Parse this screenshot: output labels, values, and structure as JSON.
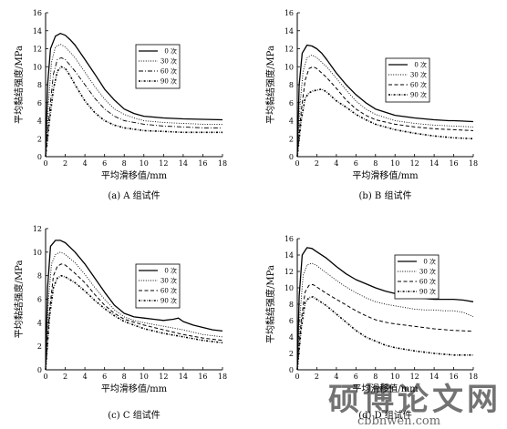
{
  "figure": {
    "watermark": {
      "text": "硕博论文网",
      "url": "cbbnwen.com"
    }
  },
  "chart_data": [
    {
      "type": "line",
      "caption": "(a) A 组试件",
      "xlabel": "平均滑移值/mm",
      "ylabel": "平均黏结强度/MPa",
      "xlim": [
        0,
        18
      ],
      "ylim": [
        0,
        16
      ],
      "xticks": [
        "0",
        "2",
        "4",
        "6",
        "8",
        "10",
        "12",
        "14",
        "16",
        "18"
      ],
      "yticks": [
        "0",
        "2",
        "4",
        "6",
        "8",
        "10",
        "12",
        "14",
        "16"
      ],
      "grid": false,
      "legend_position": "top-right",
      "series": [
        {
          "name": "0 次",
          "style": "solid",
          "x": [
            0,
            0.2,
            0.5,
            1,
            1.5,
            2,
            2.5,
            3,
            4,
            5,
            6,
            7,
            8,
            9,
            10,
            12,
            14,
            16,
            18
          ],
          "y": [
            0,
            8,
            12,
            13.4,
            13.7,
            13.5,
            13,
            12.4,
            10.8,
            9.2,
            7.5,
            6.3,
            5.3,
            4.8,
            4.5,
            4.3,
            4.2,
            4.15,
            4.1
          ]
        },
        {
          "name": "30 次",
          "style": "dotted",
          "x": [
            0,
            0.3,
            0.6,
            1,
            1.5,
            2,
            3,
            4,
            5,
            6,
            7,
            8,
            9,
            10,
            12,
            14,
            16,
            18
          ],
          "y": [
            0,
            6,
            10.5,
            12.2,
            12.5,
            12.2,
            11,
            9.4,
            7.8,
            6.4,
            5.3,
            4.7,
            4.3,
            4,
            3.8,
            3.7,
            3.6,
            3.6
          ]
        },
        {
          "name": "60 次",
          "style": "dashdot",
          "x": [
            0,
            0.4,
            0.8,
            1.2,
            1.6,
            2,
            3,
            4,
            5,
            6,
            7,
            8,
            10,
            12,
            14,
            16,
            18
          ],
          "y": [
            0,
            5,
            9.2,
            10.8,
            11,
            10.8,
            9.5,
            8,
            6.5,
            5.3,
            4.5,
            4,
            3.6,
            3.4,
            3.3,
            3.2,
            3.2
          ]
        },
        {
          "name": "90 次",
          "style": "dotdash",
          "x": [
            0,
            0.4,
            0.8,
            1.2,
            1.6,
            2,
            2.5,
            3,
            4,
            5,
            6,
            7,
            8,
            10,
            12,
            14,
            16,
            18
          ],
          "y": [
            0,
            4,
            7.5,
            9.5,
            10,
            9.8,
            9,
            8,
            6.2,
            4.9,
            4,
            3.5,
            3.2,
            2.9,
            2.8,
            2.7,
            2.7,
            2.7
          ]
        }
      ]
    },
    {
      "type": "line",
      "caption": "(b) B 组试件",
      "xlabel": "平均滑移值/mm",
      "ylabel": "平均黏结强度/MPa",
      "xlim": [
        0,
        18
      ],
      "ylim": [
        0,
        16
      ],
      "xticks": [
        "0",
        "2",
        "4",
        "6",
        "8",
        "10",
        "12",
        "14",
        "16",
        "18"
      ],
      "yticks": [
        "0",
        "2",
        "4",
        "6",
        "8",
        "10",
        "12",
        "14",
        "16"
      ],
      "grid": false,
      "legend_position": "top-right",
      "series": [
        {
          "name": "0 次",
          "style": "solid",
          "x": [
            0,
            0.2,
            0.5,
            1,
            1.5,
            2,
            2.5,
            3,
            4,
            5,
            6,
            7,
            8,
            10,
            12,
            14,
            15.5,
            16,
            18
          ],
          "y": [
            0,
            8,
            11.5,
            12.4,
            12.3,
            12,
            11.5,
            10.8,
            9.3,
            8,
            6.9,
            6,
            5.3,
            4.6,
            4.3,
            4.1,
            4,
            4,
            3.9
          ]
        },
        {
          "name": "30 次",
          "style": "dotted",
          "x": [
            0,
            0.3,
            0.6,
            1,
            1.5,
            2,
            3,
            4,
            5,
            6,
            7,
            8,
            10,
            12,
            14,
            16,
            18
          ],
          "y": [
            0,
            6,
            9.5,
            11,
            11.3,
            11,
            10,
            8.7,
            7.4,
            6.2,
            5.3,
            4.7,
            4,
            3.7,
            3.5,
            3.4,
            3.3
          ]
        },
        {
          "name": "60 次",
          "style": "dashed",
          "x": [
            0,
            0.4,
            0.8,
            1.2,
            1.6,
            2,
            3,
            4,
            5,
            6,
            7,
            8,
            10,
            12,
            14,
            16,
            18
          ],
          "y": [
            0,
            5,
            8.5,
            9.8,
            10,
            9.8,
            8.8,
            7.6,
            6.3,
            5.3,
            4.6,
            4.1,
            3.6,
            3.3,
            3.1,
            3,
            2.9
          ]
        },
        {
          "name": "90 次",
          "style": "dotdash",
          "x": [
            0,
            0.4,
            0.8,
            1.2,
            1.6,
            2,
            2.5,
            3,
            4,
            5,
            6,
            7,
            8,
            10,
            12,
            14,
            16,
            18
          ],
          "y": [
            0,
            4,
            6.5,
            7.1,
            7.3,
            7.4,
            7.5,
            7.2,
            6.2,
            5.5,
            4.7,
            4.1,
            3.6,
            3,
            2.6,
            2.3,
            2.1,
            2
          ]
        }
      ]
    },
    {
      "type": "line",
      "caption": "(c) C 组试件",
      "xlabel": "平均滑移值/mm",
      "ylabel": "平均黏结强度/MPa",
      "xlim": [
        0,
        18
      ],
      "ylim": [
        0,
        12
      ],
      "xticks": [
        "0",
        "2",
        "4",
        "6",
        "8",
        "10",
        "12",
        "14",
        "16",
        "18"
      ],
      "yticks": [
        "0",
        "2",
        "4",
        "6",
        "8",
        "10",
        "12"
      ],
      "grid": false,
      "legend_position": "top-right",
      "series": [
        {
          "name": "0 次",
          "style": "solid",
          "x": [
            0,
            0.2,
            0.5,
            1,
            1.5,
            2,
            3,
            4,
            5,
            6,
            7,
            8,
            9,
            10,
            11,
            12,
            13,
            13.5,
            14,
            15,
            16,
            17,
            18
          ],
          "y": [
            0,
            7,
            10.5,
            11,
            11,
            10.8,
            10,
            9,
            7.8,
            6.6,
            5.5,
            4.8,
            4.5,
            4.4,
            4.3,
            4.2,
            4.3,
            4.4,
            4.1,
            3.8,
            3.6,
            3.4,
            3.3
          ]
        },
        {
          "name": "30 次",
          "style": "dotted",
          "x": [
            0,
            0.3,
            0.6,
            1,
            1.5,
            2,
            3,
            4,
            5,
            6,
            7,
            8,
            9,
            10,
            12,
            14,
            16,
            18
          ],
          "y": [
            0,
            6,
            9,
            9.8,
            10,
            9.8,
            9.1,
            8.1,
            7,
            6,
            5.1,
            4.5,
            4.2,
            4,
            3.7,
            3.4,
            3,
            2.8
          ]
        },
        {
          "name": "60 次",
          "style": "dashed",
          "x": [
            0,
            0.4,
            0.8,
            1.2,
            1.6,
            2,
            3,
            4,
            5,
            6,
            7,
            8,
            10,
            12,
            14,
            16,
            18
          ],
          "y": [
            0,
            5,
            8,
            8.8,
            9,
            8.9,
            8.2,
            7.4,
            6.4,
            5.5,
            4.8,
            4.3,
            3.8,
            3.4,
            3,
            2.7,
            2.5
          ]
        },
        {
          "name": "90 次",
          "style": "dotdash",
          "x": [
            0,
            0.4,
            0.8,
            1.2,
            1.6,
            2,
            3,
            4,
            5,
            6,
            7,
            8,
            10,
            12,
            14,
            16,
            18
          ],
          "y": [
            0,
            4.5,
            7,
            7.8,
            8,
            7.9,
            7.4,
            6.7,
            5.9,
            5.2,
            4.6,
            4.1,
            3.5,
            3.1,
            2.8,
            2.5,
            2.3
          ]
        }
      ]
    },
    {
      "type": "line",
      "caption": "(d) D 组试件",
      "xlabel": "平均滑移值/mm",
      "ylabel": "平均黏结强度/MPa",
      "xlim": [
        0,
        18
      ],
      "ylim": [
        0,
        16
      ],
      "xticks": [
        "0",
        "2",
        "4",
        "6",
        "8",
        "10",
        "12",
        "14",
        "16",
        "18"
      ],
      "yticks": [
        "0",
        "2",
        "4",
        "6",
        "8",
        "10",
        "12",
        "14",
        "16"
      ],
      "grid": false,
      "legend_position": "top-right",
      "series": [
        {
          "name": "0 次",
          "style": "solid",
          "x": [
            0,
            0.2,
            0.5,
            1,
            1.5,
            2,
            3,
            4,
            5,
            6,
            7,
            8,
            9,
            10,
            11,
            12,
            13,
            14,
            15,
            16,
            17,
            18
          ],
          "y": [
            0,
            9,
            14,
            14.9,
            14.8,
            14.4,
            13.6,
            12.6,
            11.7,
            11,
            10.5,
            10,
            9.6,
            9.3,
            9,
            8.8,
            8.7,
            8.6,
            8.6,
            8.6,
            8.5,
            8.3
          ]
        },
        {
          "name": "30 次",
          "style": "dotted",
          "x": [
            0,
            0.3,
            0.6,
            1,
            1.5,
            2,
            3,
            4,
            5,
            6,
            7,
            8,
            9,
            10,
            11,
            12,
            13,
            14,
            15,
            16,
            17,
            18
          ],
          "y": [
            0,
            7,
            11.5,
            12.8,
            13,
            12.7,
            11.8,
            10.9,
            10.1,
            9.4,
            8.8,
            8.3,
            8,
            7.8,
            7.6,
            7.4,
            7.3,
            7.3,
            7.2,
            7.2,
            7,
            6.5
          ]
        },
        {
          "name": "60 次",
          "style": "dashed",
          "x": [
            0,
            0.4,
            0.8,
            1.2,
            1.6,
            2,
            3,
            4,
            5,
            6,
            7,
            8,
            9,
            10,
            12,
            14,
            16,
            18
          ],
          "y": [
            0,
            6,
            9.5,
            10.3,
            10.4,
            10.1,
            9.3,
            8.6,
            7.9,
            7.2,
            6.6,
            6.1,
            5.8,
            5.6,
            5.3,
            5,
            4.8,
            4.7
          ]
        },
        {
          "name": "90 次",
          "style": "dotdash",
          "x": [
            0,
            0.4,
            0.8,
            1.2,
            1.6,
            2,
            3,
            4,
            5,
            6,
            7,
            8,
            9,
            10,
            12,
            14,
            16,
            18
          ],
          "y": [
            0,
            5,
            8.2,
            8.8,
            8.9,
            8.6,
            7.8,
            6.8,
            5.8,
            4.8,
            4,
            3.5,
            3,
            2.7,
            2.3,
            2,
            1.8,
            1.8
          ]
        }
      ]
    }
  ]
}
